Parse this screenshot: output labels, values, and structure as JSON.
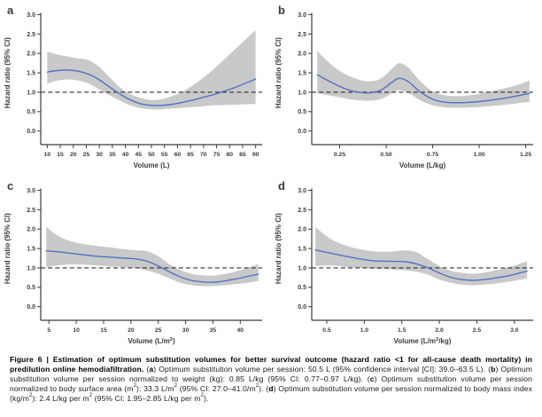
{
  "figure": {
    "colors": {
      "line": "#5272c4",
      "band": "#c9c9c9",
      "axis": "#3b3b3b",
      "ref_line": "#2e2e2e",
      "tick_text": "#3b3b3b",
      "panel_letter": "#111111",
      "background": "#ffffff"
    },
    "caption": {
      "segments": [
        {
          "t": "Figure 6 | Estimation of optimum substitution volumes for better survival outcome (hazard ratio <1 for all-cause death mortality) in predilution online hemodiafiltration. ",
          "b": true
        },
        {
          "t": "("
        },
        {
          "t": "a",
          "b": true
        },
        {
          "t": ") Optimum substitution volume per session: 50.5 L (95% confidence interval [CI]: 39.0–63.5 L). ("
        },
        {
          "t": "b",
          "b": true
        },
        {
          "t": ") Optimum substitution volume per session normalized to weight (kg): 0.85 L/kg (95% CI: 0.77–0.97 L/kg). ("
        },
        {
          "t": "c",
          "b": true
        },
        {
          "t": ") Optimum substitution volume per session normalized to body surface area (m"
        },
        {
          "t": "2",
          "sup": true
        },
        {
          "t": "): 33.3 L/m"
        },
        {
          "t": "2",
          "sup": true
        },
        {
          "t": " (95% CI: 27.0–41.0/m"
        },
        {
          "t": "2",
          "sup": true
        },
        {
          "t": "). ("
        },
        {
          "t": "d",
          "b": true
        },
        {
          "t": ") Optimum substitution volume per session normalized to body mass index (kg/m"
        },
        {
          "t": "2",
          "sup": true
        },
        {
          "t": "): 2.4 L/kg per m"
        },
        {
          "t": "2",
          "sup": true
        },
        {
          "t": " (95% CI: 1.95–2.85 L/kg per m"
        },
        {
          "t": "2",
          "sup": true
        },
        {
          "t": ")."
        }
      ]
    }
  },
  "chart_data": [
    {
      "id": "a",
      "type": "line",
      "panel_letter": "a",
      "ylabel": "Hazard ratio (95% CI)",
      "xlabel_segments": [
        {
          "t": "Volume (L)"
        }
      ],
      "xlim": [
        7.5,
        92.5
      ],
      "ylim": [
        0.0,
        3.0
      ],
      "ylim_draw": [
        -0.35,
        3.08
      ],
      "ref_line_y": 1.0,
      "xticks": [
        {
          "v": 10,
          "l": "10"
        },
        {
          "v": 15,
          "l": "15"
        },
        {
          "v": 20,
          "l": "20"
        },
        {
          "v": 25,
          "l": "25"
        },
        {
          "v": 30,
          "l": "30"
        },
        {
          "v": 35,
          "l": "35"
        },
        {
          "v": 40,
          "l": "40"
        },
        {
          "v": 45,
          "l": "45"
        },
        {
          "v": 50,
          "l": "50"
        },
        {
          "v": 55,
          "l": "55"
        },
        {
          "v": 60,
          "l": "60"
        },
        {
          "v": 65,
          "l": "65"
        },
        {
          "v": 70,
          "l": "70"
        },
        {
          "v": 75,
          "l": "75"
        },
        {
          "v": 80,
          "l": "80"
        },
        {
          "v": 85,
          "l": "85"
        },
        {
          "v": 90,
          "l": "90"
        }
      ],
      "yticks": [
        {
          "v": 0,
          "l": "0.0"
        },
        {
          "v": 0.5,
          "l": "0.5"
        },
        {
          "v": 1,
          "l": "1.0"
        },
        {
          "v": 1.5,
          "l": "1.5"
        },
        {
          "v": 2,
          "l": "2.0"
        },
        {
          "v": 2.5,
          "l": "2.5"
        },
        {
          "v": 3,
          "l": "3.0"
        }
      ],
      "series": [
        {
          "name": "hazard ratio with 95% CI band",
          "optimum_note": "optimum 50.5 L (95% CI 39.0-63.5 L)",
          "points_format": "[x, y, lo95, hi95]",
          "points": [
            [
              10,
              1.52,
              1.22,
              2.05
            ],
            [
              14,
              1.56,
              1.3,
              1.97
            ],
            [
              18,
              1.57,
              1.33,
              1.92
            ],
            [
              22,
              1.54,
              1.3,
              1.87
            ],
            [
              26,
              1.46,
              1.22,
              1.82
            ],
            [
              30,
              1.32,
              1.07,
              1.65
            ],
            [
              34,
              1.13,
              0.92,
              1.38
            ],
            [
              38,
              0.95,
              0.78,
              1.12
            ],
            [
              42,
              0.8,
              0.66,
              0.95
            ],
            [
              46,
              0.7,
              0.59,
              0.85
            ],
            [
              50,
              0.66,
              0.56,
              0.8
            ],
            [
              54,
              0.66,
              0.56,
              0.82
            ],
            [
              58,
              0.69,
              0.58,
              0.9
            ],
            [
              62,
              0.74,
              0.6,
              1.02
            ],
            [
              66,
              0.8,
              0.62,
              1.18
            ],
            [
              70,
              0.87,
              0.64,
              1.38
            ],
            [
              74,
              0.94,
              0.66,
              1.6
            ],
            [
              78,
              1.03,
              0.67,
              1.85
            ],
            [
              82,
              1.12,
              0.68,
              2.1
            ],
            [
              86,
              1.23,
              0.69,
              2.35
            ],
            [
              90,
              1.34,
              0.7,
              2.6
            ]
          ]
        }
      ]
    },
    {
      "id": "b",
      "type": "line",
      "panel_letter": "b",
      "ylabel": "Hazard ratio (95% CI)",
      "xlabel_segments": [
        {
          "t": "Volume (L/kg)"
        }
      ],
      "xlim": [
        0.1,
        1.29
      ],
      "ylim": [
        0.0,
        3.0
      ],
      "ylim_draw": [
        -0.35,
        3.08
      ],
      "ref_line_y": 1.0,
      "xticks": [
        {
          "v": 0.25,
          "l": "0.25"
        },
        {
          "v": 0.5,
          "l": "0.50"
        },
        {
          "v": 0.75,
          "l": "0.75"
        },
        {
          "v": 1.0,
          "l": "1.00"
        },
        {
          "v": 1.25,
          "l": "1.25"
        }
      ],
      "yticks": [
        {
          "v": 0,
          "l": "0.0"
        },
        {
          "v": 0.5,
          "l": "0.5"
        },
        {
          "v": 1,
          "l": "1.0"
        },
        {
          "v": 1.5,
          "l": "1.5"
        },
        {
          "v": 2,
          "l": "2.0"
        },
        {
          "v": 2.5,
          "l": "2.5"
        },
        {
          "v": 3,
          "l": "3.0"
        }
      ],
      "series": [
        {
          "name": "hazard ratio with 95% CI band",
          "optimum_note": "optimum 0.85 L/kg (95% CI 0.77-0.97 L/kg)",
          "points_format": "[x, y, lo95, hi95]",
          "points": [
            [
              0.13,
              1.45,
              0.97,
              2.07
            ],
            [
              0.18,
              1.32,
              0.93,
              1.82
            ],
            [
              0.25,
              1.15,
              0.87,
              1.55
            ],
            [
              0.32,
              1.03,
              0.81,
              1.38
            ],
            [
              0.4,
              0.98,
              0.78,
              1.28
            ],
            [
              0.47,
              1.05,
              0.82,
              1.35
            ],
            [
              0.53,
              1.25,
              0.97,
              1.6
            ],
            [
              0.57,
              1.36,
              1.05,
              1.75
            ],
            [
              0.62,
              1.27,
              0.98,
              1.63
            ],
            [
              0.68,
              1.02,
              0.8,
              1.3
            ],
            [
              0.75,
              0.82,
              0.66,
              1.02
            ],
            [
              0.82,
              0.74,
              0.61,
              0.92
            ],
            [
              0.9,
              0.73,
              0.6,
              0.9
            ],
            [
              1.0,
              0.76,
              0.62,
              0.96
            ],
            [
              1.1,
              0.82,
              0.66,
              1.06
            ],
            [
              1.2,
              0.9,
              0.71,
              1.18
            ],
            [
              1.27,
              0.97,
              0.75,
              1.3
            ]
          ]
        }
      ]
    },
    {
      "id": "c",
      "type": "line",
      "panel_letter": "c",
      "ylabel": "Hazard ratio (95% CI)",
      "xlabel_segments": [
        {
          "t": "Volume (L/m"
        },
        {
          "t": "2",
          "sup": true
        },
        {
          "t": ")"
        }
      ],
      "xlim": [
        3.5,
        44.0
      ],
      "ylim": [
        0.0,
        3.0
      ],
      "ylim_draw": [
        -0.35,
        3.08
      ],
      "ref_line_y": 1.0,
      "xticks": [
        {
          "v": 5,
          "l": "5"
        },
        {
          "v": 10,
          "l": "10"
        },
        {
          "v": 15,
          "l": "15"
        },
        {
          "v": 20,
          "l": "20"
        },
        {
          "v": 25,
          "l": "25"
        },
        {
          "v": 30,
          "l": "30"
        },
        {
          "v": 35,
          "l": "35"
        },
        {
          "v": 40,
          "l": "40"
        }
      ],
      "yticks": [
        {
          "v": 0,
          "l": "0.0"
        },
        {
          "v": 0.5,
          "l": "0.5"
        },
        {
          "v": 1,
          "l": "1.0"
        },
        {
          "v": 1.5,
          "l": "1.5"
        },
        {
          "v": 2,
          "l": "2.0"
        },
        {
          "v": 2.5,
          "l": "2.5"
        },
        {
          "v": 3,
          "l": "3.0"
        }
      ],
      "series": [
        {
          "name": "hazard ratio with 95% CI band",
          "optimum_note": "optimum 33.3 L/m2 (95% CI 27.0-41.0/m2)",
          "points_format": "[x, y, lo95, hi95]",
          "points": [
            [
              4.5,
              1.44,
              1.02,
              2.06
            ],
            [
              7,
              1.41,
              1.07,
              1.8
            ],
            [
              10,
              1.36,
              1.09,
              1.65
            ],
            [
              13,
              1.31,
              1.07,
              1.58
            ],
            [
              16,
              1.28,
              1.04,
              1.53
            ],
            [
              19,
              1.25,
              1.02,
              1.48
            ],
            [
              21,
              1.23,
              0.99,
              1.45
            ],
            [
              23,
              1.17,
              0.93,
              1.43
            ],
            [
              25,
              1.05,
              0.85,
              1.3
            ],
            [
              27,
              0.9,
              0.73,
              1.1
            ],
            [
              29,
              0.77,
              0.62,
              0.95
            ],
            [
              31,
              0.68,
              0.56,
              0.85
            ],
            [
              33,
              0.64,
              0.53,
              0.81
            ],
            [
              35,
              0.63,
              0.53,
              0.8
            ],
            [
              37,
              0.66,
              0.55,
              0.84
            ],
            [
              39,
              0.71,
              0.58,
              0.9
            ],
            [
              41,
              0.77,
              0.61,
              0.99
            ],
            [
              43.3,
              0.84,
              0.66,
              1.1
            ]
          ]
        }
      ]
    },
    {
      "id": "d",
      "type": "line",
      "panel_letter": "d",
      "ylabel": "Hazard ratio (95% CI)",
      "xlabel_segments": [
        {
          "t": "Volume (L/m"
        },
        {
          "t": "2",
          "sup": true
        },
        {
          "t": "/kg)"
        }
      ],
      "xlim": [
        0.3,
        3.25
      ],
      "ylim": [
        0.0,
        3.0
      ],
      "ylim_draw": [
        -0.35,
        3.08
      ],
      "ref_line_y": 1.0,
      "xticks": [
        {
          "v": 0.5,
          "l": "0.5"
        },
        {
          "v": 1.0,
          "l": "1.0"
        },
        {
          "v": 1.5,
          "l": "1.5"
        },
        {
          "v": 2.0,
          "l": "2.0"
        },
        {
          "v": 2.5,
          "l": "2.5"
        },
        {
          "v": 3.0,
          "l": "3.0"
        }
      ],
      "yticks": [
        {
          "v": 0,
          "l": "0.0"
        },
        {
          "v": 0.5,
          "l": "0.5"
        },
        {
          "v": 1,
          "l": "1.0"
        },
        {
          "v": 1.5,
          "l": "1.5"
        },
        {
          "v": 2,
          "l": "2.0"
        },
        {
          "v": 2.5,
          "l": "2.5"
        },
        {
          "v": 3,
          "l": "3.0"
        }
      ],
      "series": [
        {
          "name": "hazard ratio with 95% CI band",
          "optimum_note": "optimum 2.4 L/kg per m2 (95% CI 1.95-2.85 L/kg per m2)",
          "points_format": "[x, y, lo95, hi95]",
          "points": [
            [
              0.35,
              1.46,
              1.05,
              2.05
            ],
            [
              0.55,
              1.38,
              1.06,
              1.75
            ],
            [
              0.75,
              1.3,
              1.03,
              1.58
            ],
            [
              0.95,
              1.23,
              1.0,
              1.48
            ],
            [
              1.15,
              1.18,
              0.97,
              1.42
            ],
            [
              1.35,
              1.17,
              0.96,
              1.42
            ],
            [
              1.55,
              1.16,
              0.94,
              1.45
            ],
            [
              1.7,
              1.1,
              0.9,
              1.4
            ],
            [
              1.85,
              1.0,
              0.82,
              1.22
            ],
            [
              2.0,
              0.87,
              0.7,
              1.05
            ],
            [
              2.15,
              0.76,
              0.62,
              0.93
            ],
            [
              2.3,
              0.7,
              0.57,
              0.87
            ],
            [
              2.45,
              0.68,
              0.55,
              0.85
            ],
            [
              2.6,
              0.7,
              0.57,
              0.88
            ],
            [
              2.75,
              0.74,
              0.6,
              0.94
            ],
            [
              2.95,
              0.81,
              0.65,
              1.03
            ],
            [
              3.17,
              0.92,
              0.73,
              1.17
            ]
          ]
        }
      ]
    }
  ]
}
